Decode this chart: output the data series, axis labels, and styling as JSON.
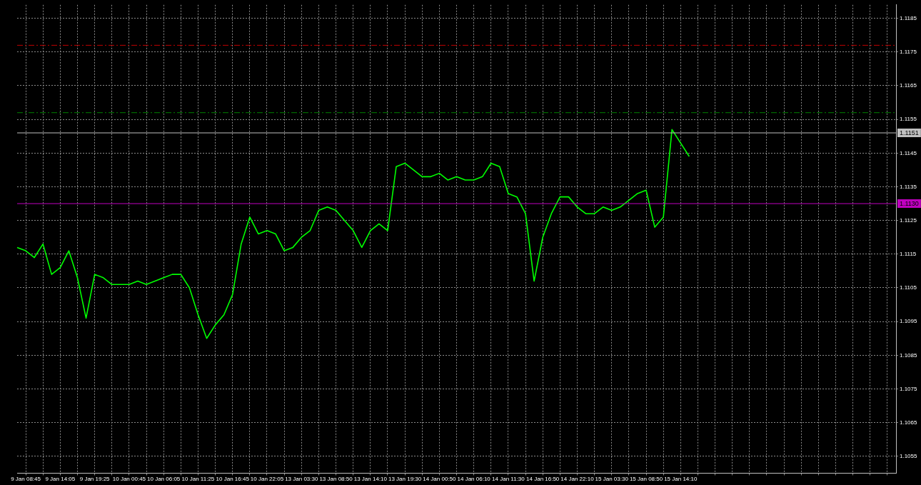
{
  "chart_data": {
    "type": "line",
    "categories": [
      null,
      "9 Jan 08:45",
      null,
      null,
      null,
      "9 Jan 14:05",
      null,
      null,
      null,
      "9 Jan 19:25",
      null,
      null,
      null,
      "10 Jan 00:45",
      null,
      null,
      null,
      "10 Jan 06:05",
      null,
      null,
      null,
      "10 Jan 11:25",
      null,
      null,
      null,
      "10 Jan 16:45",
      null,
      null,
      null,
      "10 Jan 22:05",
      null,
      null,
      null,
      "13 Jan 03:30",
      null,
      null,
      null,
      "13 Jan 08:50",
      null,
      null,
      null,
      "13 Jan 14:10",
      null,
      null,
      null,
      "13 Jan 19:30",
      null,
      null,
      null,
      "14 Jan 00:50",
      null,
      null,
      null,
      "14 Jan 06:10",
      null,
      null,
      null,
      "14 Jan 11:30",
      null,
      null,
      null,
      "14 Jan 16:50",
      null,
      null,
      null,
      "14 Jan 22:10",
      null,
      null,
      null,
      "15 Jan 03:30",
      null,
      null,
      null,
      "15 Jan 08:50",
      null,
      null,
      null,
      "15 Jan 14:10",
      null,
      null,
      null,
      null,
      null,
      null,
      null,
      null,
      null,
      null,
      null,
      null,
      null,
      null,
      null,
      null,
      null,
      null,
      null,
      null,
      null,
      null,
      null,
      null,
      null
    ],
    "series": [
      {
        "color": "#00ff00",
        "values": [
          1.1117,
          1.1116,
          1.1114,
          1.1118,
          1.1109,
          1.1111,
          1.1116,
          1.1108,
          1.1096,
          1.1109,
          1.1108,
          1.1106,
          1.1106,
          1.1106,
          1.1107,
          1.1106,
          1.1107,
          1.1108,
          1.1109,
          1.1109,
          1.1105,
          1.1097,
          1.109,
          1.1094,
          1.1097,
          1.1103,
          1.1118,
          1.1126,
          1.1121,
          1.1122,
          1.1121,
          1.1116,
          1.1117,
          1.112,
          1.1122,
          1.1128,
          1.1129,
          1.1128,
          1.1125,
          1.1122,
          1.1117,
          1.1122,
          1.1124,
          1.1122,
          1.1141,
          1.1142,
          1.114,
          1.1138,
          1.1138,
          1.1139,
          1.1137,
          1.1138,
          1.1137,
          1.1137,
          1.1138,
          1.1142,
          1.1141,
          1.1133,
          1.1132,
          1.1127,
          1.1107,
          1.112,
          1.1127,
          1.1132,
          1.1132,
          1.1129,
          1.1127,
          1.1127,
          1.1129,
          1.1128,
          1.1129,
          1.1131,
          1.1133,
          1.1134,
          1.1123,
          1.1126,
          1.1152,
          1.1148,
          1.1144,
          null,
          null,
          null,
          null,
          null,
          null,
          null,
          null,
          null,
          null,
          null,
          null,
          null,
          null,
          null,
          null,
          null,
          null,
          null,
          null,
          null,
          null,
          null,
          null
        ]
      }
    ],
    "ylim": [
      1.105,
      1.1189
    ],
    "yticks": [
      1.1055,
      1.1065,
      1.1075,
      1.1085,
      1.1095,
      1.1105,
      1.1115,
      1.1125,
      1.1135,
      1.1145,
      1.1155,
      1.1165,
      1.1175,
      1.1185
    ],
    "ref_lines": [
      {
        "axis": "y",
        "value": 1.1177,
        "color": "#c00000",
        "line_style": "dashdot"
      },
      {
        "axis": "y",
        "value": 1.1157,
        "color": "#008000",
        "line_style": "dashdot"
      },
      {
        "axis": "y",
        "value": 1.1151,
        "color": "#c0c0c0",
        "line_style": "solid",
        "label": "1.1151"
      },
      {
        "axis": "y",
        "value": 1.113,
        "color": "#c000c0",
        "line_style": "solid",
        "label": "1.1130"
      }
    ],
    "grid": true,
    "legend": false,
    "marker": "none",
    "line_style": "solid"
  }
}
